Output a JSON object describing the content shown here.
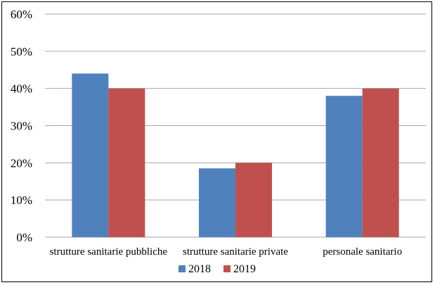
{
  "chart_data": {
    "type": "bar",
    "categories": [
      "strutture sanitarie pubbliche",
      "strutture sanitarie private",
      "personale sanitario"
    ],
    "series": [
      {
        "name": "2018",
        "values": [
          44,
          18.5,
          38
        ],
        "color": "#4f81bd"
      },
      {
        "name": "2019",
        "values": [
          40,
          20,
          40
        ],
        "color": "#c0504d"
      }
    ],
    "title": "",
    "xlabel": "",
    "ylabel": "",
    "ylim": [
      0,
      60
    ],
    "yticks": [
      "0%",
      "10%",
      "20%",
      "30%",
      "40%",
      "50%",
      "60%"
    ],
    "grid": true,
    "gridline_color": "#a6a6a6",
    "legend_position": "bottom"
  }
}
